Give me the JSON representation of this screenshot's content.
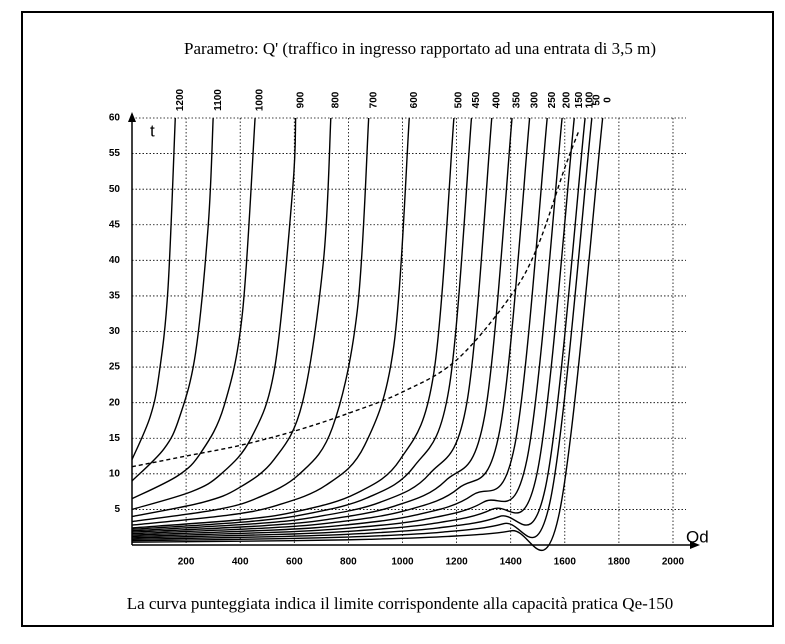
{
  "chart_data": {
    "type": "line",
    "title": "Parametro: Q' (traffico in ingresso rapportato ad una entrata di 3,5 m)",
    "caption": "La curva punteggiata indica il limite corrispondente alla capacità pratica Qe-150",
    "x_label": "Qd",
    "y_label": "t",
    "xlim": [
      0,
      2000
    ],
    "ylim": [
      0,
      60
    ],
    "xticks": [
      200,
      400,
      600,
      800,
      1000,
      1200,
      1400,
      1600,
      1800,
      2000
    ],
    "yticks": [
      5,
      10,
      15,
      20,
      25,
      30,
      35,
      40,
      45,
      50,
      55,
      60
    ],
    "grid": true,
    "color": "#000000",
    "series": [
      {
        "name": "1200",
        "x": [
          0,
          67,
          100,
          133,
          160
        ],
        "values": [
          12,
          18,
          24,
          36,
          60
        ]
      },
      {
        "name": "1100",
        "x": [
          0,
          118,
          176,
          235,
          282,
          300
        ],
        "values": [
          9,
          13.5,
          18,
          27,
          45,
          60
        ]
      },
      {
        "name": "1000",
        "x": [
          0,
          170,
          255,
          340,
          408,
          455
        ],
        "values": [
          6.5,
          9.75,
          13,
          19.5,
          32.5,
          60
        ]
      },
      {
        "name": "900",
        "x": [
          0,
          220,
          330,
          440,
          528,
          594,
          605
        ],
        "values": [
          5,
          7.5,
          10,
          15,
          25,
          50,
          60
        ]
      },
      {
        "name": "800",
        "x": [
          0,
          262,
          394,
          525,
          630,
          708,
          735
        ],
        "values": [
          4,
          6,
          8,
          12,
          20,
          40,
          60
        ]
      },
      {
        "name": "700",
        "x": [
          0,
          309,
          463,
          617,
          741,
          833,
          875
        ],
        "values": [
          3.3,
          4.95,
          6.6,
          9.9,
          16.5,
          33,
          60
        ]
      },
      {
        "name": "600",
        "x": [
          0,
          358,
          538,
          717,
          860,
          968,
          1025
        ],
        "values": [
          2.8,
          4.2,
          5.6,
          8.4,
          14,
          28,
          60
        ]
      },
      {
        "name": "500",
        "x": [
          0,
          413,
          620,
          826,
          991,
          1115,
          1190
        ],
        "values": [
          2.4,
          3.6,
          4.8,
          7.2,
          12,
          24,
          60
        ]
      },
      {
        "name": "450",
        "x": [
          0,
          434,
          651,
          868,
          1042,
          1172,
          1255
        ],
        "values": [
          2.2,
          3.3,
          4.4,
          6.6,
          11,
          22,
          60
        ]
      },
      {
        "name": "400",
        "x": [
          0,
          458,
          688,
          917,
          1100,
          1238,
          1330
        ],
        "values": [
          2,
          3,
          4,
          6,
          10,
          20,
          60
        ]
      },
      {
        "name": "350",
        "x": [
          0,
          483,
          724,
          965,
          1158,
          1303,
          1405
        ],
        "values": [
          1.8,
          2.7,
          3.6,
          5.4,
          9,
          18,
          60
        ]
      },
      {
        "name": "300",
        "x": [
          0,
          503,
          755,
          1007,
          1208,
          1359,
          1470
        ],
        "values": [
          1.6,
          2.4,
          3.2,
          4.8,
          8,
          16,
          60
        ]
      },
      {
        "name": "250",
        "x": [
          0,
          524,
          786,
          1048,
          1258,
          1415,
          1535
        ],
        "values": [
          1.4,
          2.1,
          2.8,
          4.2,
          7,
          14,
          60
        ]
      },
      {
        "name": "200",
        "x": [
          0,
          541,
          811,
          1081,
          1298,
          1460,
          1590
        ],
        "values": [
          1.2,
          1.8,
          2.4,
          3.6,
          6,
          12,
          60
        ]
      },
      {
        "name": "150",
        "x": [
          0,
          554,
          832,
          1109,
          1330,
          1497,
          1635
        ],
        "values": [
          1,
          1.5,
          2,
          3,
          5,
          10,
          60
        ]
      },
      {
        "name": "100",
        "x": [
          0,
          566,
          849,
          1132,
          1358,
          1528,
          1675
        ],
        "values": [
          0.8,
          1.2,
          1.6,
          2.4,
          4,
          8,
          60
        ]
      },
      {
        "name": "50",
        "x": [
          0,
          572,
          859,
          1145,
          1374,
          1545,
          1700
        ],
        "values": [
          0.6,
          0.9,
          1.2,
          1.8,
          3,
          6,
          60
        ]
      },
      {
        "name": "0",
        "x": [
          0,
          584,
          876,
          1168,
          1402,
          1577,
          1740
        ],
        "values": [
          0.4,
          0.6,
          0.8,
          1.2,
          2,
          4,
          60
        ]
      }
    ],
    "limit_curve": {
      "x": [
        0,
        200,
        400,
        600,
        800,
        1000,
        1200,
        1400,
        1500,
        1600,
        1650
      ],
      "values": [
        11,
        12.5,
        14,
        16,
        18.5,
        21.5,
        26,
        35,
        42,
        53,
        58
      ]
    }
  }
}
